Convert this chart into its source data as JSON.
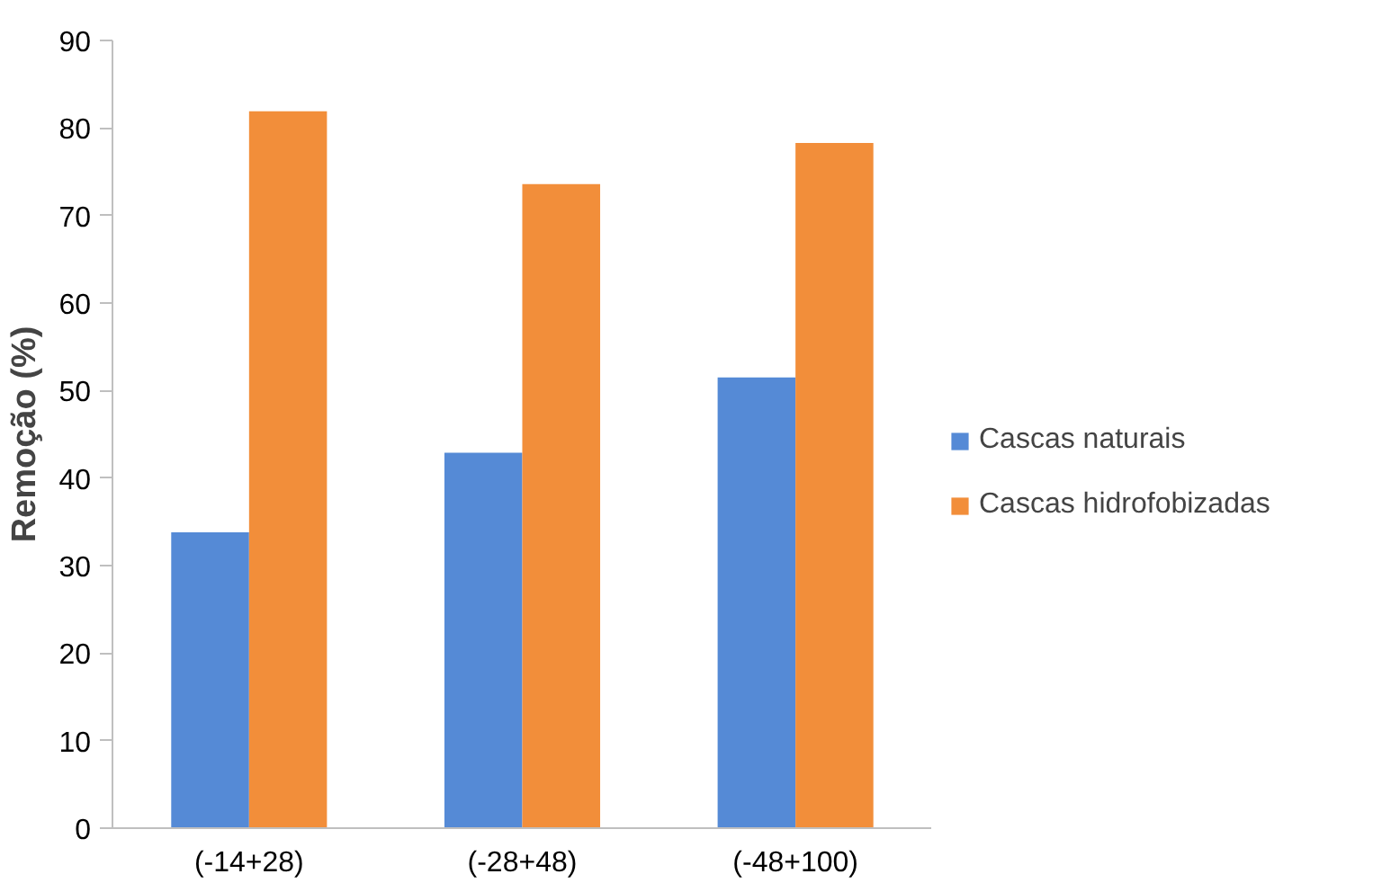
{
  "chart_data": {
    "type": "bar",
    "ylabel": "Remoção (%)",
    "categories": [
      "(-14+28)",
      "(-28+48)",
      "(-48+100)"
    ],
    "series": [
      {
        "name": "Cascas naturais",
        "color": "#558ad6",
        "values": [
          33.8,
          42.9,
          51.5
        ]
      },
      {
        "name": "Cascas hidrofobizadas",
        "color": "#f28e3a",
        "values": [
          81.9,
          73.6,
          78.3
        ]
      }
    ],
    "ylim": [
      0,
      90
    ],
    "yticks": [
      0,
      10,
      20,
      30,
      40,
      50,
      60,
      70,
      80,
      90
    ],
    "grid": false,
    "legend": "right"
  }
}
